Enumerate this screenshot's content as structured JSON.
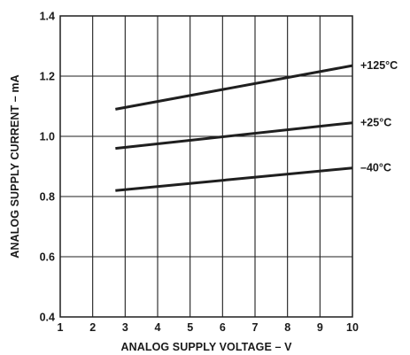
{
  "chart_data": {
    "type": "line",
    "title": "",
    "xlabel": "ANALOG SUPPLY VOLTAGE – V",
    "ylabel": "ANALOG SUPPLY CURRENT – mA",
    "xlim": [
      1,
      10
    ],
    "ylim": [
      0.4,
      1.4
    ],
    "x_ticks": [
      "1",
      "2",
      "3",
      "4",
      "5",
      "6",
      "7",
      "8",
      "9",
      "10"
    ],
    "y_ticks": [
      "0.4",
      "0.6",
      "0.8",
      "1.0",
      "1.2",
      "1.4"
    ],
    "grid": true,
    "series": [
      {
        "name": "+125°C",
        "x": [
          2.7,
          10
        ],
        "values": [
          1.09,
          1.235
        ]
      },
      {
        "name": "+25°C",
        "x": [
          2.7,
          10
        ],
        "values": [
          0.96,
          1.045
        ]
      },
      {
        "name": "–40°C",
        "x": [
          2.7,
          10
        ],
        "values": [
          0.82,
          0.895
        ]
      }
    ]
  }
}
